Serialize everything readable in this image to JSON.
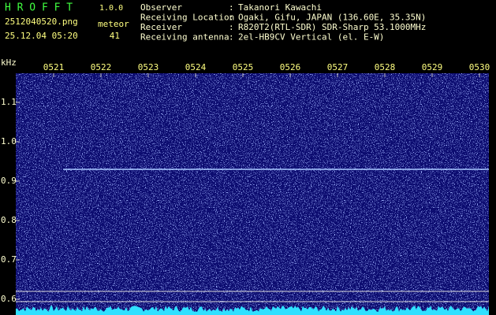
{
  "header": {
    "app": "H R O F F T",
    "version": "1.0.0",
    "file": "2512040520.png",
    "meteor_label": "meteor",
    "datetime": "25.12.04 05:20",
    "meteor_count": 41,
    "separator": ":",
    "info": [
      {
        "label": "Observer",
        "value": "Takanori Kawachi"
      },
      {
        "label": "Receiving Location",
        "value": "Ogaki, Gifu, JAPAN (136.60E, 35.35N)"
      },
      {
        "label": "Receiver",
        "value": "R820T2(RTL-SDR) SDR-Sharp 53.1000MHz"
      },
      {
        "label": "Receiving antenna",
        "value": "2el-HB9CV Vertical (el. E-W)"
      }
    ]
  },
  "chart_data": {
    "type": "spectrogram",
    "y_label": "kHz",
    "xlim": [
      20.2,
      30.2
    ],
    "xticks": [
      {
        "value": 21,
        "label": "0521"
      },
      {
        "value": 22,
        "label": "0522"
      },
      {
        "value": 23,
        "label": "0523"
      },
      {
        "value": 24,
        "label": "0524"
      },
      {
        "value": 25,
        "label": "0525"
      },
      {
        "value": 26,
        "label": "0526"
      },
      {
        "value": 27,
        "label": "0527"
      },
      {
        "value": 28,
        "label": "0528"
      },
      {
        "value": 29,
        "label": "0529"
      },
      {
        "value": 30,
        "label": "0530"
      }
    ],
    "ylim": [
      0.56,
      1.184
    ],
    "yticks": [
      0.6,
      0.7,
      0.8,
      0.9,
      {
        "value": 1,
        "label": "1.0"
      },
      1.1
    ],
    "carrier": {
      "y": 0.93,
      "x": [
        21.2,
        30.2
      ]
    },
    "hlines": [
      0.62,
      0.594
    ]
  }
}
